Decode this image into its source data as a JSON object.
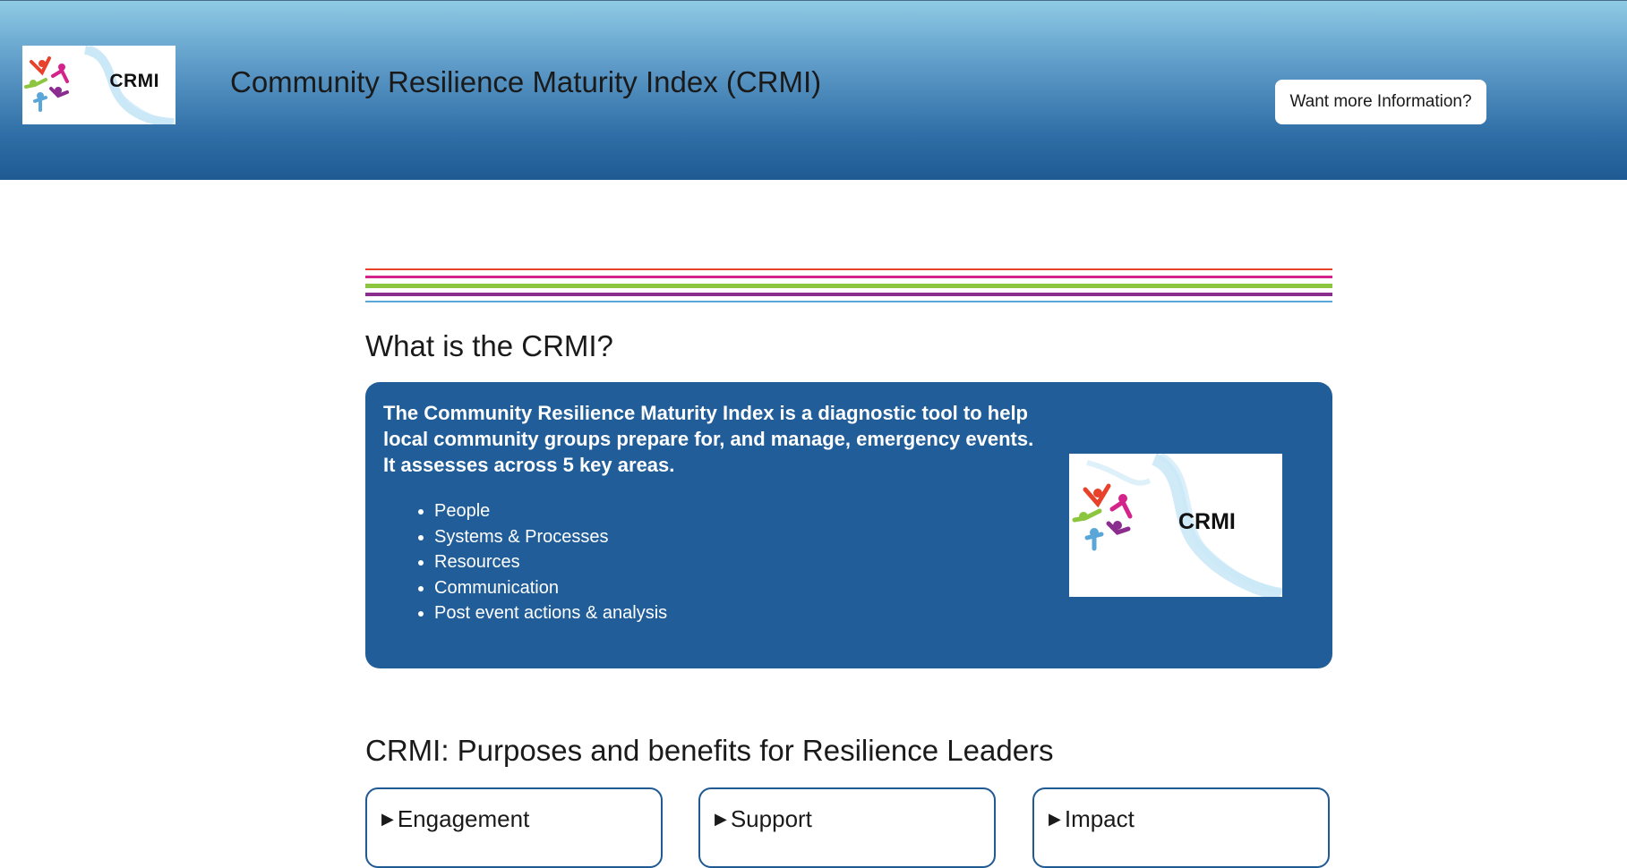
{
  "header": {
    "logo_text": "CRMI",
    "title": "Community Resilience Maturity Index (CRMI)",
    "info_button_label": "Want more Information?"
  },
  "colors": {
    "stripe_red": "#e8412c",
    "stripe_magenta": "#d4238a",
    "stripe_green": "#8cc63f",
    "stripe_purple": "#8b2c8f",
    "stripe_blue": "#5aa6d8",
    "card_blue": "#215e99"
  },
  "what_is": {
    "heading": "What is the CRMI?",
    "intro": "The Community Resilience Maturity Index is a diagnostic tool to help local community groups prepare for, and manage, emergency events. It assesses across 5 key areas.",
    "areas": [
      "People",
      "Systems & Processes",
      "Resources",
      "Communication",
      "Post event actions & analysis"
    ],
    "logo_text": "CRMI"
  },
  "purposes": {
    "heading": "CRMI: Purposes and benefits for Resilience Leaders",
    "items": [
      {
        "label": "Engagement"
      },
      {
        "label": "Support"
      },
      {
        "label": "Impact"
      }
    ]
  }
}
